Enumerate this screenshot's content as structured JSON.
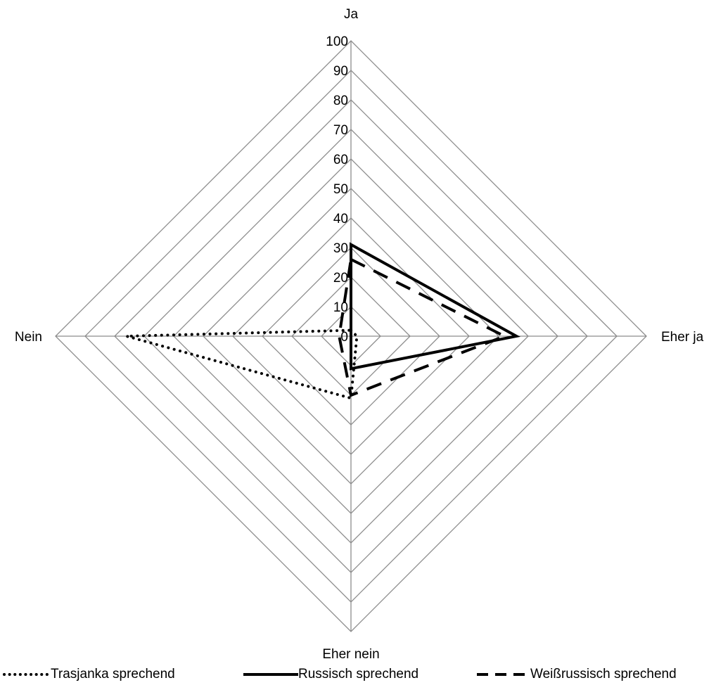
{
  "chart_data": {
    "type": "radar",
    "categories": [
      "Ja",
      "Eher ja",
      "Eher nein",
      "Nein"
    ],
    "rlim": [
      0,
      100
    ],
    "ticks": [
      0,
      10,
      20,
      30,
      40,
      50,
      60,
      70,
      80,
      90,
      100
    ],
    "grid": true,
    "legend": "bottom",
    "series": [
      {
        "name": "Trasjanka sprechend",
        "style": "dotted",
        "color": "#000000",
        "values": [
          2,
          2,
          21,
          76
        ]
      },
      {
        "name": "Russisch sprechend",
        "style": "solid",
        "color": "#000000",
        "values": [
          31,
          56,
          11,
          0
        ]
      },
      {
        "name": "Weißrussisch sprechend",
        "style": "dashed",
        "color": "#000000",
        "values": [
          26,
          52,
          20,
          4
        ]
      }
    ]
  }
}
